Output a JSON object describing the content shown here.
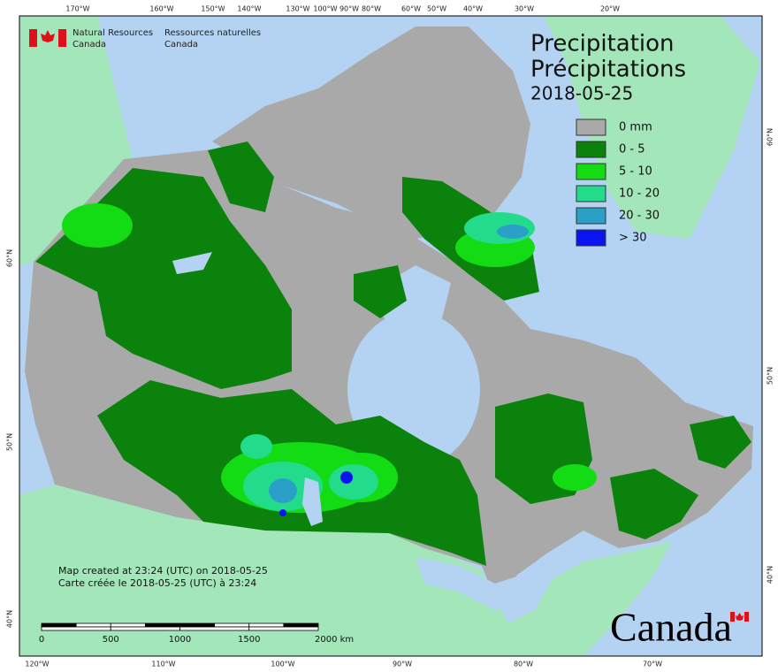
{
  "header": {
    "title_en": "Precipitation",
    "title_fr": "Précipitations",
    "date": "2018-05-25"
  },
  "agency": {
    "en": [
      "Natural Resources",
      "Canada"
    ],
    "fr": [
      "Ressources naturelles",
      "Canada"
    ]
  },
  "legend": [
    {
      "label": "0 mm",
      "color": "#a9a9a9"
    },
    {
      "label": "0 - 5",
      "color": "#0b820b"
    },
    {
      "label": "5 - 10",
      "color": "#14dc14"
    },
    {
      "label": "10 - 20",
      "color": "#22dc8c"
    },
    {
      "label": "20 - 30",
      "color": "#2aa0c8"
    },
    {
      "label": "> 30",
      "color": "#0a14f0"
    }
  ],
  "graticule": {
    "top": [
      "170°W",
      "160°W",
      "150°W",
      "140°W",
      "130°W",
      "100°W",
      "90°W",
      "80°W",
      "60°W",
      "50°W",
      "40°W",
      "30°W",
      "20°W"
    ],
    "bottom": [
      "120°W",
      "110°W",
      "100°W",
      "90°W",
      "80°W",
      "70°W"
    ],
    "left": [
      "60°N",
      "50°N",
      "40°N"
    ],
    "right": [
      "60°N",
      "50°N",
      "40°N"
    ]
  },
  "scale": {
    "labels": [
      "0",
      "500",
      "1000",
      "1500",
      "2000 km"
    ]
  },
  "credits": [
    "Map created at 23:24 (UTC) on 2018-05-25",
    "Carte créée le 2018-05-25 (UTC) à 23:24"
  ],
  "wordmark": "Canada"
}
